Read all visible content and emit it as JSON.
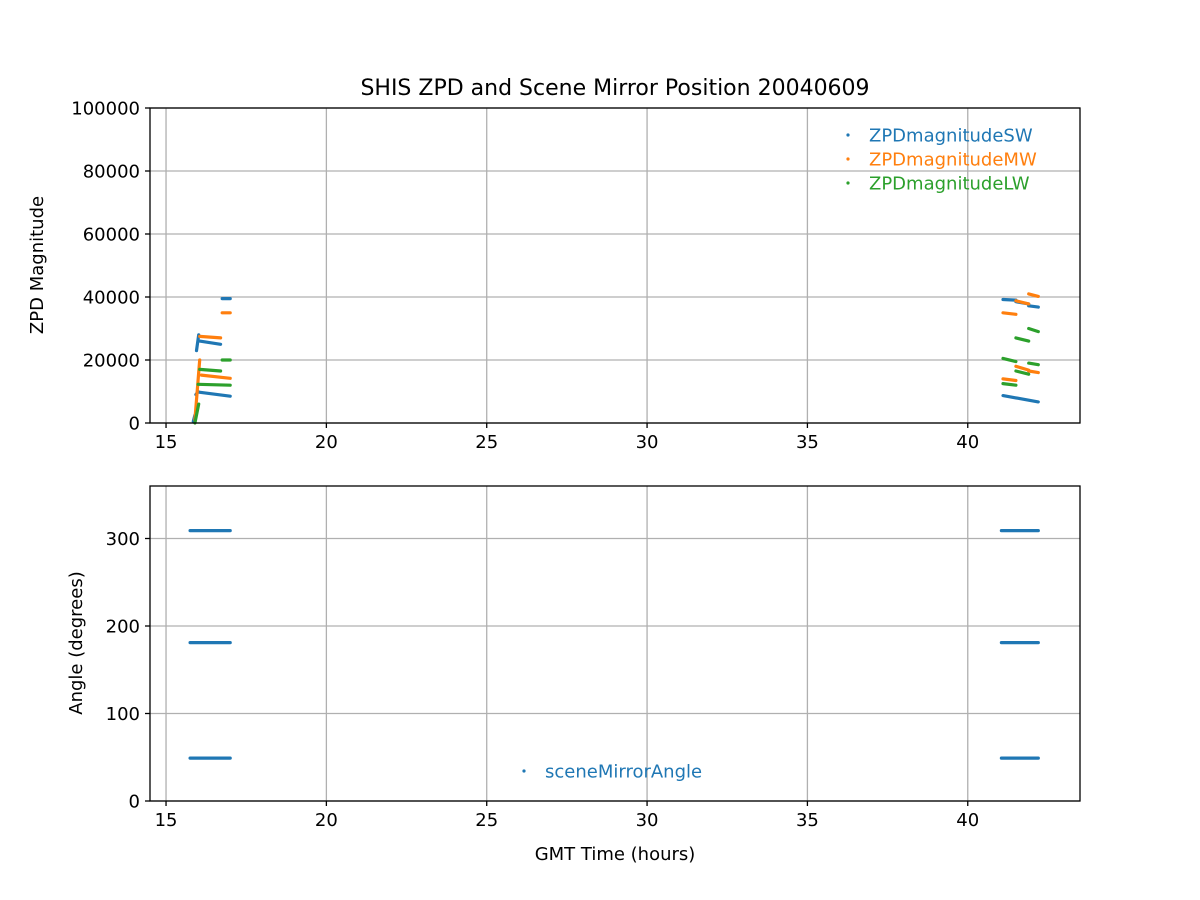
{
  "chart_data": [
    {
      "type": "scatter",
      "title": "SHIS ZPD and Scene Mirror Position 20040609",
      "xlabel": "",
      "ylabel": "ZPD Magnitude",
      "xlim": [
        14.5,
        43.5
      ],
      "ylim": [
        0,
        100000
      ],
      "x_ticks": [
        15,
        20,
        25,
        30,
        35,
        40
      ],
      "y_ticks": [
        0,
        20000,
        40000,
        60000,
        80000,
        100000
      ],
      "grid": true,
      "legend_position": "top-right",
      "series": [
        {
          "name": "ZPDmagnitudeSW",
          "color": "#1f77b4",
          "segments": [
            {
              "x": [
                15.85,
                15.9
              ],
              "y": [
                500,
                2500
              ]
            },
            {
              "x": [
                15.95,
                16.02
              ],
              "y": [
                23000,
                28000
              ]
            },
            {
              "x": [
                16.05,
                16.7
              ],
              "y": [
                26000,
                25000
              ]
            },
            {
              "x": [
                16.75,
                17.0
              ],
              "y": [
                39500,
                39500
              ]
            },
            {
              "x": [
                15.93,
                16.0
              ],
              "y": [
                9000,
                10000
              ]
            },
            {
              "x": [
                16.0,
                17.0
              ],
              "y": [
                9800,
                8500
              ]
            },
            {
              "x": [
                41.1,
                41.5
              ],
              "y": [
                39200,
                39000
              ]
            },
            {
              "x": [
                41.5,
                41.9
              ],
              "y": [
                38500,
                37800
              ]
            },
            {
              "x": [
                41.9,
                42.2
              ],
              "y": [
                37200,
                36800
              ]
            },
            {
              "x": [
                41.1,
                42.2
              ],
              "y": [
                8700,
                6700
              ]
            }
          ]
        },
        {
          "name": "ZPDmagnitudeMW",
          "color": "#ff7f0e",
          "segments": [
            {
              "x": [
                15.9,
                16.05
              ],
              "y": [
                1000,
                20000
              ]
            },
            {
              "x": [
                16.05,
                16.7
              ],
              "y": [
                27500,
                27000
              ]
            },
            {
              "x": [
                16.75,
                17.0
              ],
              "y": [
                35000,
                35000
              ]
            },
            {
              "x": [
                16.1,
                17.0
              ],
              "y": [
                15200,
                14200
              ]
            },
            {
              "x": [
                41.1,
                41.5
              ],
              "y": [
                35000,
                34500
              ]
            },
            {
              "x": [
                41.5,
                41.9
              ],
              "y": [
                38800,
                37800
              ]
            },
            {
              "x": [
                41.9,
                42.2
              ],
              "y": [
                41000,
                40200
              ]
            },
            {
              "x": [
                41.1,
                41.5
              ],
              "y": [
                14000,
                13500
              ]
            },
            {
              "x": [
                41.5,
                41.9
              ],
              "y": [
                18000,
                16800
              ]
            },
            {
              "x": [
                41.9,
                42.2
              ],
              "y": [
                16500,
                16000
              ]
            }
          ]
        },
        {
          "name": "ZPDmagnitudeLW",
          "color": "#2ca02c",
          "segments": [
            {
              "x": [
                15.9,
                16.02
              ],
              "y": [
                0,
                6000
              ]
            },
            {
              "x": [
                16.05,
                16.7
              ],
              "y": [
                17000,
                16500
              ]
            },
            {
              "x": [
                16.75,
                17.0
              ],
              "y": [
                20000,
                20000
              ]
            },
            {
              "x": [
                16.0,
                17.0
              ],
              "y": [
                12300,
                12000
              ]
            },
            {
              "x": [
                41.1,
                41.5
              ],
              "y": [
                20500,
                19500
              ]
            },
            {
              "x": [
                41.5,
                41.9
              ],
              "y": [
                27000,
                26000
              ]
            },
            {
              "x": [
                41.9,
                42.2
              ],
              "y": [
                30000,
                29000
              ]
            },
            {
              "x": [
                41.1,
                41.5
              ],
              "y": [
                12500,
                12000
              ]
            },
            {
              "x": [
                41.5,
                41.9
              ],
              "y": [
                16500,
                15500
              ]
            },
            {
              "x": [
                41.9,
                42.2
              ],
              "y": [
                19000,
                18500
              ]
            }
          ]
        }
      ]
    },
    {
      "type": "scatter",
      "title": "",
      "xlabel": "GMT Time (hours)",
      "ylabel": "Angle (degrees)",
      "xlim": [
        14.5,
        43.5
      ],
      "ylim": [
        0,
        360
      ],
      "x_ticks": [
        15,
        20,
        25,
        30,
        35,
        40
      ],
      "y_ticks": [
        0,
        100,
        200,
        300
      ],
      "grid": true,
      "legend_position": "lower-center",
      "series": [
        {
          "name": "sceneMirrorAngle",
          "color": "#1f77b4",
          "segments": [
            {
              "x": [
                15.75,
                17.0
              ],
              "y": [
                309,
                309
              ]
            },
            {
              "x": [
                15.75,
                17.0
              ],
              "y": [
                181,
                181
              ]
            },
            {
              "x": [
                15.75,
                17.0
              ],
              "y": [
                49,
                49
              ]
            },
            {
              "x": [
                41.05,
                42.2
              ],
              "y": [
                309,
                309
              ]
            },
            {
              "x": [
                41.05,
                42.2
              ],
              "y": [
                181,
                181
              ]
            },
            {
              "x": [
                41.05,
                42.2
              ],
              "y": [
                49,
                49
              ]
            }
          ]
        }
      ]
    }
  ]
}
